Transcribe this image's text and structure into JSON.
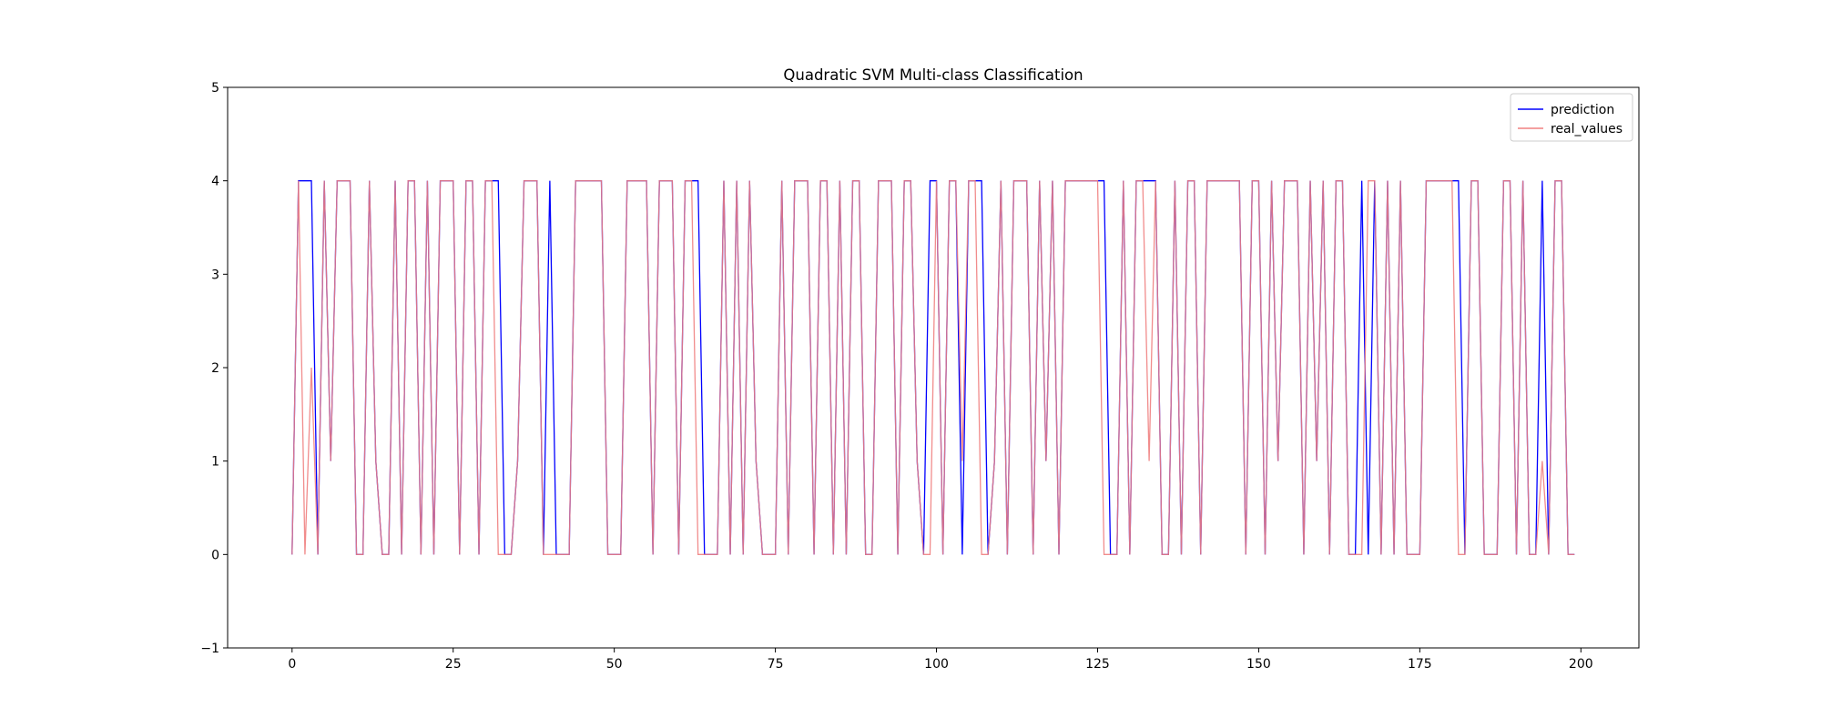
{
  "chart_data": {
    "type": "line",
    "title": "Quadratic SVM Multi-class Classification",
    "xlabel": "",
    "ylabel": "",
    "xlim": [
      -10,
      209
    ],
    "ylim": [
      -1,
      5
    ],
    "x_ticks": [
      0,
      25,
      50,
      75,
      100,
      125,
      150,
      175,
      200
    ],
    "y_ticks": [
      -1,
      0,
      1,
      2,
      3,
      4,
      5
    ],
    "x_tick_labels": [
      "0",
      "25",
      "50",
      "75",
      "100",
      "125",
      "150",
      "175",
      "200"
    ],
    "y_tick_labels": [
      "−1",
      "0",
      "1",
      "2",
      "3",
      "4",
      "5"
    ],
    "grid": false,
    "legend_position": "top-right",
    "series": [
      {
        "name": "prediction",
        "color": "#0000ff",
        "values": [
          0,
          4,
          4,
          4,
          0,
          4,
          1,
          4,
          4,
          4,
          0,
          0,
          4,
          1,
          0,
          0,
          4,
          0,
          4,
          4,
          0,
          4,
          0,
          4,
          4,
          4,
          0,
          4,
          4,
          0,
          4,
          4,
          4,
          0,
          0,
          1,
          4,
          4,
          4,
          0,
          4,
          0,
          0,
          0,
          4,
          4,
          4,
          4,
          4,
          0,
          0,
          0,
          4,
          4,
          4,
          4,
          0,
          4,
          4,
          4,
          0,
          4,
          4,
          4,
          0,
          0,
          0,
          4,
          0,
          4,
          0,
          4,
          1,
          0,
          0,
          0,
          4,
          0,
          4,
          4,
          4,
          0,
          4,
          4,
          0,
          4,
          0,
          4,
          4,
          0,
          0,
          4,
          4,
          4,
          0,
          4,
          4,
          1,
          0,
          4,
          4,
          0,
          4,
          4,
          0,
          4,
          4,
          4,
          0,
          1,
          4,
          0,
          4,
          4,
          4,
          0,
          4,
          1,
          4,
          0,
          4,
          4,
          4,
          4,
          4,
          4,
          4,
          0,
          0,
          4,
          0,
          4,
          4,
          4,
          4,
          0,
          0,
          4,
          0,
          4,
          4,
          0,
          4,
          4,
          4,
          4,
          4,
          4,
          0,
          4,
          4,
          0,
          4,
          1,
          4,
          4,
          4,
          0,
          4,
          1,
          4,
          0,
          4,
          4,
          0,
          0,
          4,
          0,
          4,
          0,
          4,
          0,
          4,
          0,
          0,
          0,
          4,
          4,
          4,
          4,
          4,
          4,
          0,
          4,
          4,
          0,
          0,
          0,
          4,
          4,
          0,
          4,
          0,
          0,
          4,
          0,
          4,
          4,
          0,
          0
        ]
      },
      {
        "name": "real_values",
        "color": "#f08080",
        "values": [
          0,
          4,
          0,
          2,
          0,
          4,
          1,
          4,
          4,
          4,
          0,
          0,
          4,
          1,
          0,
          0,
          4,
          0,
          4,
          4,
          0,
          4,
          0,
          4,
          4,
          4,
          0,
          4,
          4,
          0,
          4,
          4,
          0,
          0,
          0,
          1,
          4,
          4,
          4,
          0,
          0,
          0,
          0,
          0,
          4,
          4,
          4,
          4,
          4,
          0,
          0,
          0,
          4,
          4,
          4,
          4,
          0,
          4,
          4,
          4,
          0,
          4,
          4,
          0,
          0,
          0,
          0,
          4,
          0,
          4,
          0,
          4,
          1,
          0,
          0,
          0,
          4,
          0,
          4,
          4,
          4,
          0,
          4,
          4,
          0,
          4,
          0,
          4,
          4,
          0,
          0,
          4,
          4,
          4,
          0,
          4,
          4,
          1,
          0,
          0,
          4,
          0,
          4,
          4,
          1,
          4,
          4,
          0,
          0,
          1,
          4,
          0,
          4,
          4,
          4,
          0,
          4,
          1,
          4,
          0,
          4,
          4,
          4,
          4,
          4,
          4,
          0,
          0,
          0,
          4,
          0,
          4,
          4,
          1,
          4,
          0,
          0,
          4,
          0,
          4,
          4,
          0,
          4,
          4,
          4,
          4,
          4,
          4,
          0,
          4,
          4,
          0,
          4,
          1,
          4,
          4,
          4,
          0,
          4,
          1,
          4,
          0,
          4,
          4,
          0,
          0,
          0,
          4,
          4,
          0,
          4,
          0,
          4,
          0,
          0,
          0,
          4,
          4,
          4,
          4,
          4,
          0,
          0,
          4,
          4,
          0,
          0,
          0,
          4,
          4,
          0,
          4,
          0,
          0,
          1,
          0,
          4,
          4,
          0,
          0
        ]
      }
    ]
  }
}
